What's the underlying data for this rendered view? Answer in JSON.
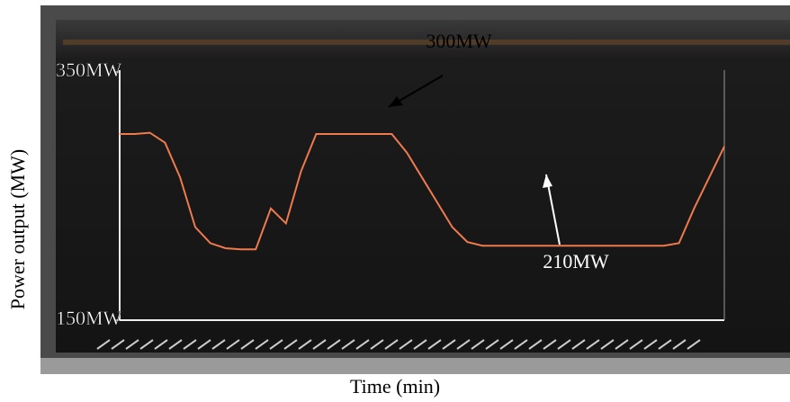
{
  "chart_data": {
    "type": "line",
    "y_label": "Power output (MW)",
    "x_label": "Time (min)",
    "annotations": [
      "300MW",
      "210MW"
    ],
    "values": [
      300,
      300,
      301,
      293,
      265,
      225,
      212,
      208,
      207,
      207,
      240,
      228,
      270,
      300,
      300,
      300,
      300,
      300,
      300,
      285,
      265,
      245,
      225,
      213,
      210,
      210,
      210,
      210,
      210,
      210,
      210,
      210,
      210,
      210,
      210,
      210,
      210,
      212,
      240,
      265,
      290
    ],
    "color": "#ef7a4e",
    "ylim": [
      150,
      350
    ],
    "yticks": [
      {
        "value": 150,
        "label": "150MW"
      },
      {
        "value": 350,
        "label": "350MW"
      }
    ]
  }
}
